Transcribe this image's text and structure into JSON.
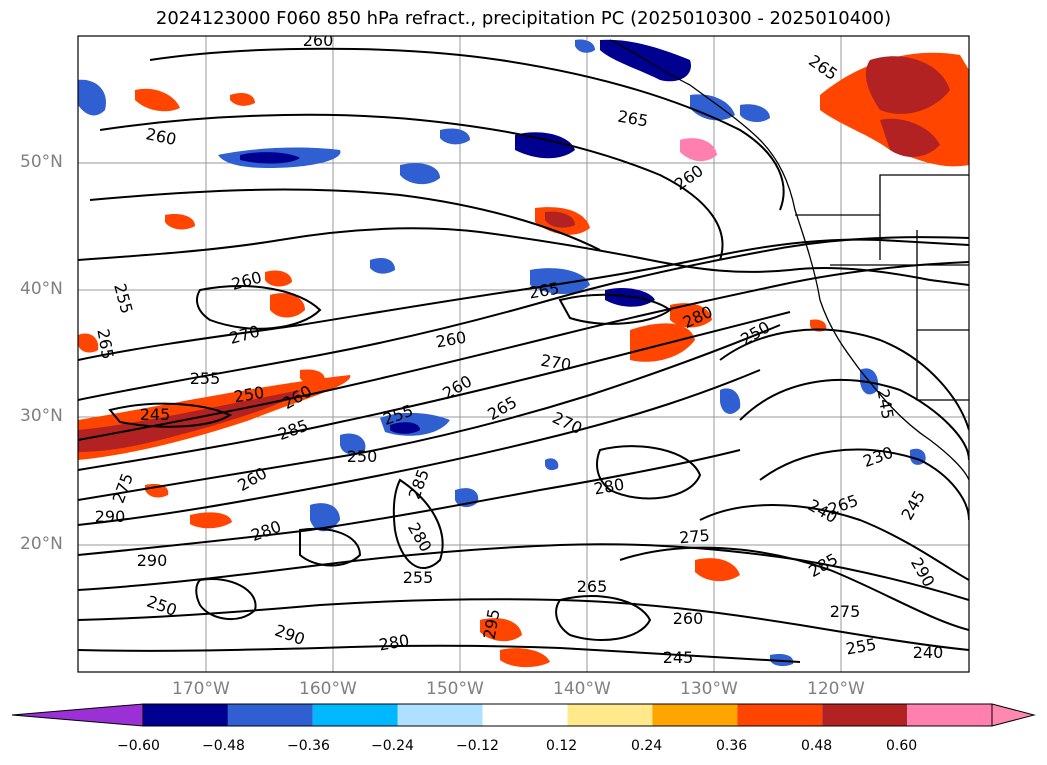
{
  "title": "2024123000 F060 850 hPa refract., precipitation PC (2025010300 - 2025010400)",
  "map": {
    "lat_labels": [
      "50°N",
      "40°N",
      "30°N",
      "20°N"
    ],
    "lon_labels": [
      "170°W",
      "160°W",
      "150°W",
      "140°W",
      "130°W",
      "120°W"
    ],
    "gridline_color": "#9a9a9a",
    "contour_color": "#000000",
    "contour_labels": [
      "260",
      "260",
      "265",
      "260",
      "265",
      "255",
      "265",
      "260",
      "270",
      "265",
      "260",
      "280",
      "250",
      "270",
      "255",
      "250",
      "245",
      "260",
      "285",
      "250",
      "255",
      "260",
      "265",
      "270",
      "280",
      "245",
      "230",
      "275",
      "260",
      "290",
      "280",
      "265",
      "240",
      "245",
      "290",
      "285",
      "275",
      "280",
      "290",
      "255",
      "265",
      "285",
      "275",
      "290",
      "250",
      "280",
      "295",
      "255",
      "240",
      "260",
      "245"
    ],
    "land_color": "#000000"
  },
  "colorbar": {
    "ticks": [
      "−0.60",
      "−0.48",
      "−0.36",
      "−0.24",
      "−0.12",
      "0.12",
      "0.24",
      "0.36",
      "0.48",
      "0.60"
    ],
    "colors": [
      "#9b30d6",
      "#000090",
      "#2f5fd0",
      "#00b8ff",
      "#b0e0ff",
      "#ffffff",
      "#ffe98a",
      "#ffa500",
      "#ff4500",
      "#b22222",
      "#ff7fae",
      "#ff88b0"
    ]
  }
}
